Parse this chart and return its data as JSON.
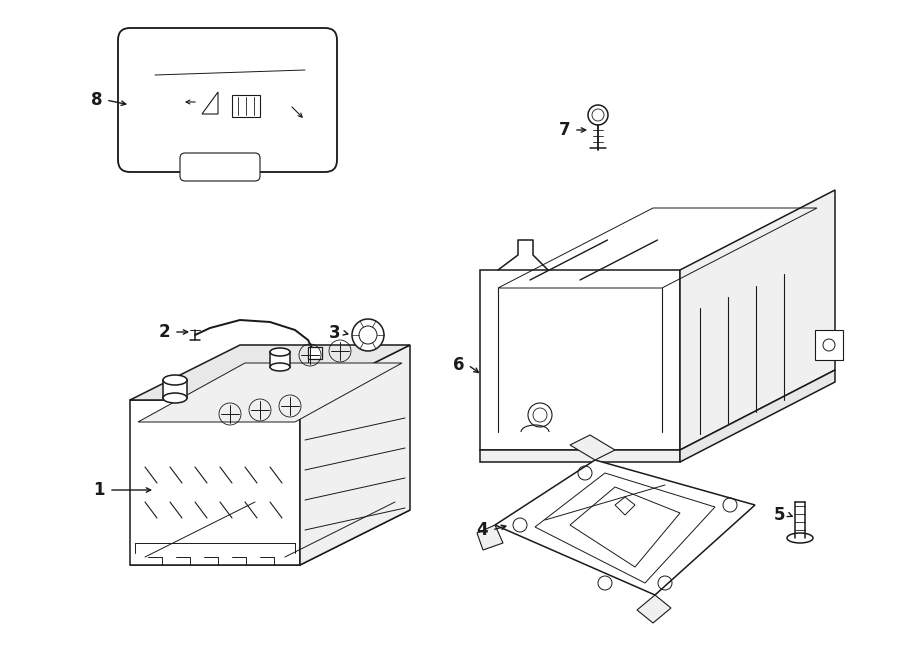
{
  "bg_color": "#ffffff",
  "line_color": "#1a1a1a",
  "lw": 1.1,
  "fig_width": 9.0,
  "fig_height": 6.61,
  "dpi": 100
}
